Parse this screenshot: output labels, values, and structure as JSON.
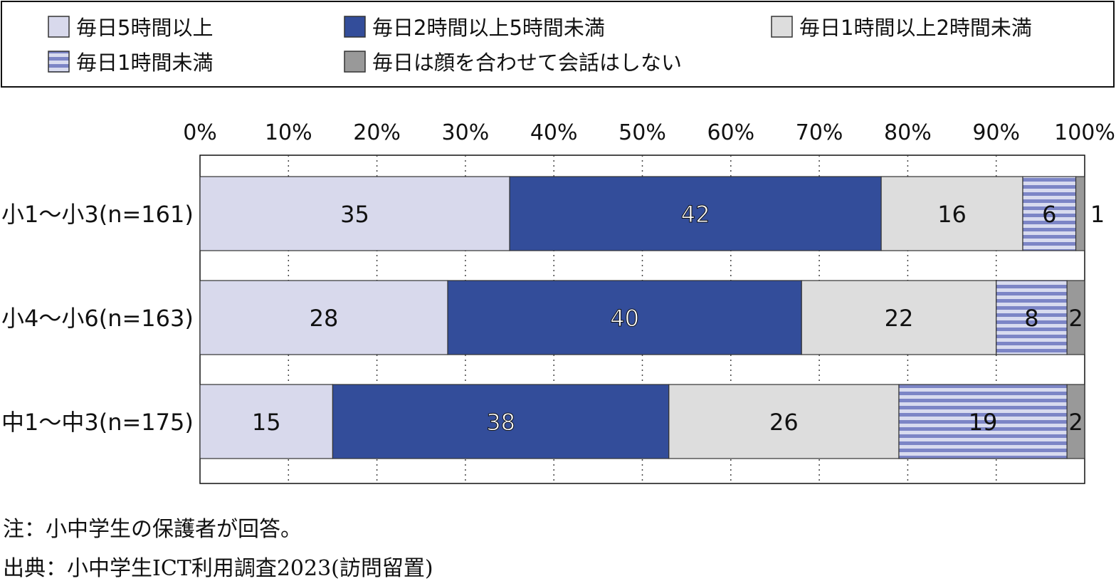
{
  "chart_data": {
    "type": "bar",
    "orientation": "horizontal",
    "stacked": true,
    "legend_placement": "top",
    "categories": [
      "小1～小3(n=161)",
      "小4～小6(n=163)",
      "中1～中3(n=175)"
    ],
    "series": [
      {
        "name": "毎日5時間以上",
        "values": [
          35,
          28,
          15
        ],
        "color": "#d8d9ec",
        "pattern": "solid"
      },
      {
        "name": "毎日2時間以上5時間未満",
        "values": [
          42,
          40,
          38
        ],
        "color": "#334d9a",
        "pattern": "solid"
      },
      {
        "name": "毎日1時間以上2時間未満",
        "values": [
          16,
          22,
          26
        ],
        "color": "#dddddd",
        "pattern": "solid"
      },
      {
        "name": "毎日1時間未満",
        "values": [
          6,
          8,
          19
        ],
        "color": "#7c85c6",
        "pattern": "stripes"
      },
      {
        "name": "毎日は顔を合わせて会話はしない",
        "values": [
          1,
          2,
          2
        ],
        "color": "#999999",
        "pattern": "solid"
      }
    ],
    "x_tick_labels": [
      "0%",
      "10%",
      "20%",
      "30%",
      "40%",
      "50%",
      "60%",
      "70%",
      "80%",
      "90%",
      "100%"
    ],
    "xlim": [
      0,
      100
    ],
    "grid": true
  },
  "notes": {
    "note": "注：小中学生の保護者が回答。",
    "source": "出典：小中学生ICT利用調査2023(訪問留置)"
  }
}
